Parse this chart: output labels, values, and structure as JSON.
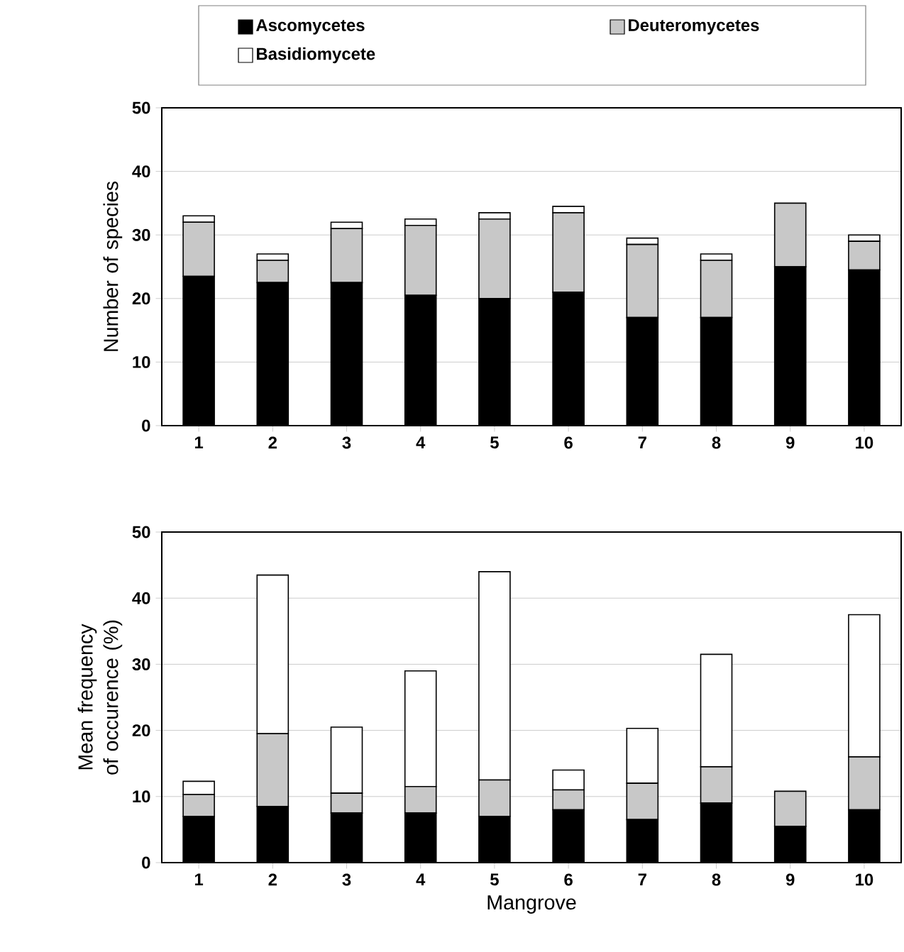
{
  "chart_data": [
    {
      "type": "bar",
      "stacked": true,
      "ylabel": "Number of species",
      "categories": [
        "1",
        "2",
        "3",
        "4",
        "5",
        "6",
        "7",
        "8",
        "9",
        "10"
      ],
      "ylim": [
        0,
        50
      ],
      "yticks": [
        0,
        10,
        20,
        30,
        40,
        50
      ],
      "grid": "y",
      "legend": "top",
      "series": [
        {
          "name": "Ascomycetes",
          "color": "#000000",
          "values": [
            23.5,
            22.5,
            22.5,
            20.5,
            20,
            21,
            17,
            17,
            25,
            24.5
          ]
        },
        {
          "name": "Deuteromycetes",
          "color": "#c8c8c8",
          "values": [
            8.5,
            3.5,
            8.5,
            11,
            12.5,
            12.5,
            11.5,
            9,
            10,
            4.5
          ]
        },
        {
          "name": "Basidiomycete",
          "color": "#ffffff",
          "values": [
            1,
            1,
            1,
            1,
            1,
            1,
            1,
            1,
            0,
            1
          ]
        }
      ]
    },
    {
      "type": "bar",
      "stacked": true,
      "ylabel": "Mean frequency of occurence (%)",
      "xlabel": "Mangrove",
      "categories": [
        "1",
        "2",
        "3",
        "4",
        "5",
        "6",
        "7",
        "8",
        "9",
        "10"
      ],
      "ylim": [
        0,
        50
      ],
      "yticks": [
        0,
        10,
        20,
        30,
        40,
        50
      ],
      "grid": "y",
      "series": [
        {
          "color": "#000000",
          "values": [
            7,
            8.5,
            7.5,
            7.5,
            7,
            8,
            6.5,
            9,
            5.5,
            8
          ]
        },
        {
          "color": "#c8c8c8",
          "values": [
            3.3,
            11,
            3,
            4,
            5.5,
            3,
            5.5,
            5.5,
            5.3,
            8
          ]
        },
        {
          "color": "#ffffff",
          "values": [
            2,
            24,
            10,
            17.5,
            31.5,
            3,
            8.3,
            17,
            0,
            21.5
          ]
        }
      ]
    }
  ]
}
